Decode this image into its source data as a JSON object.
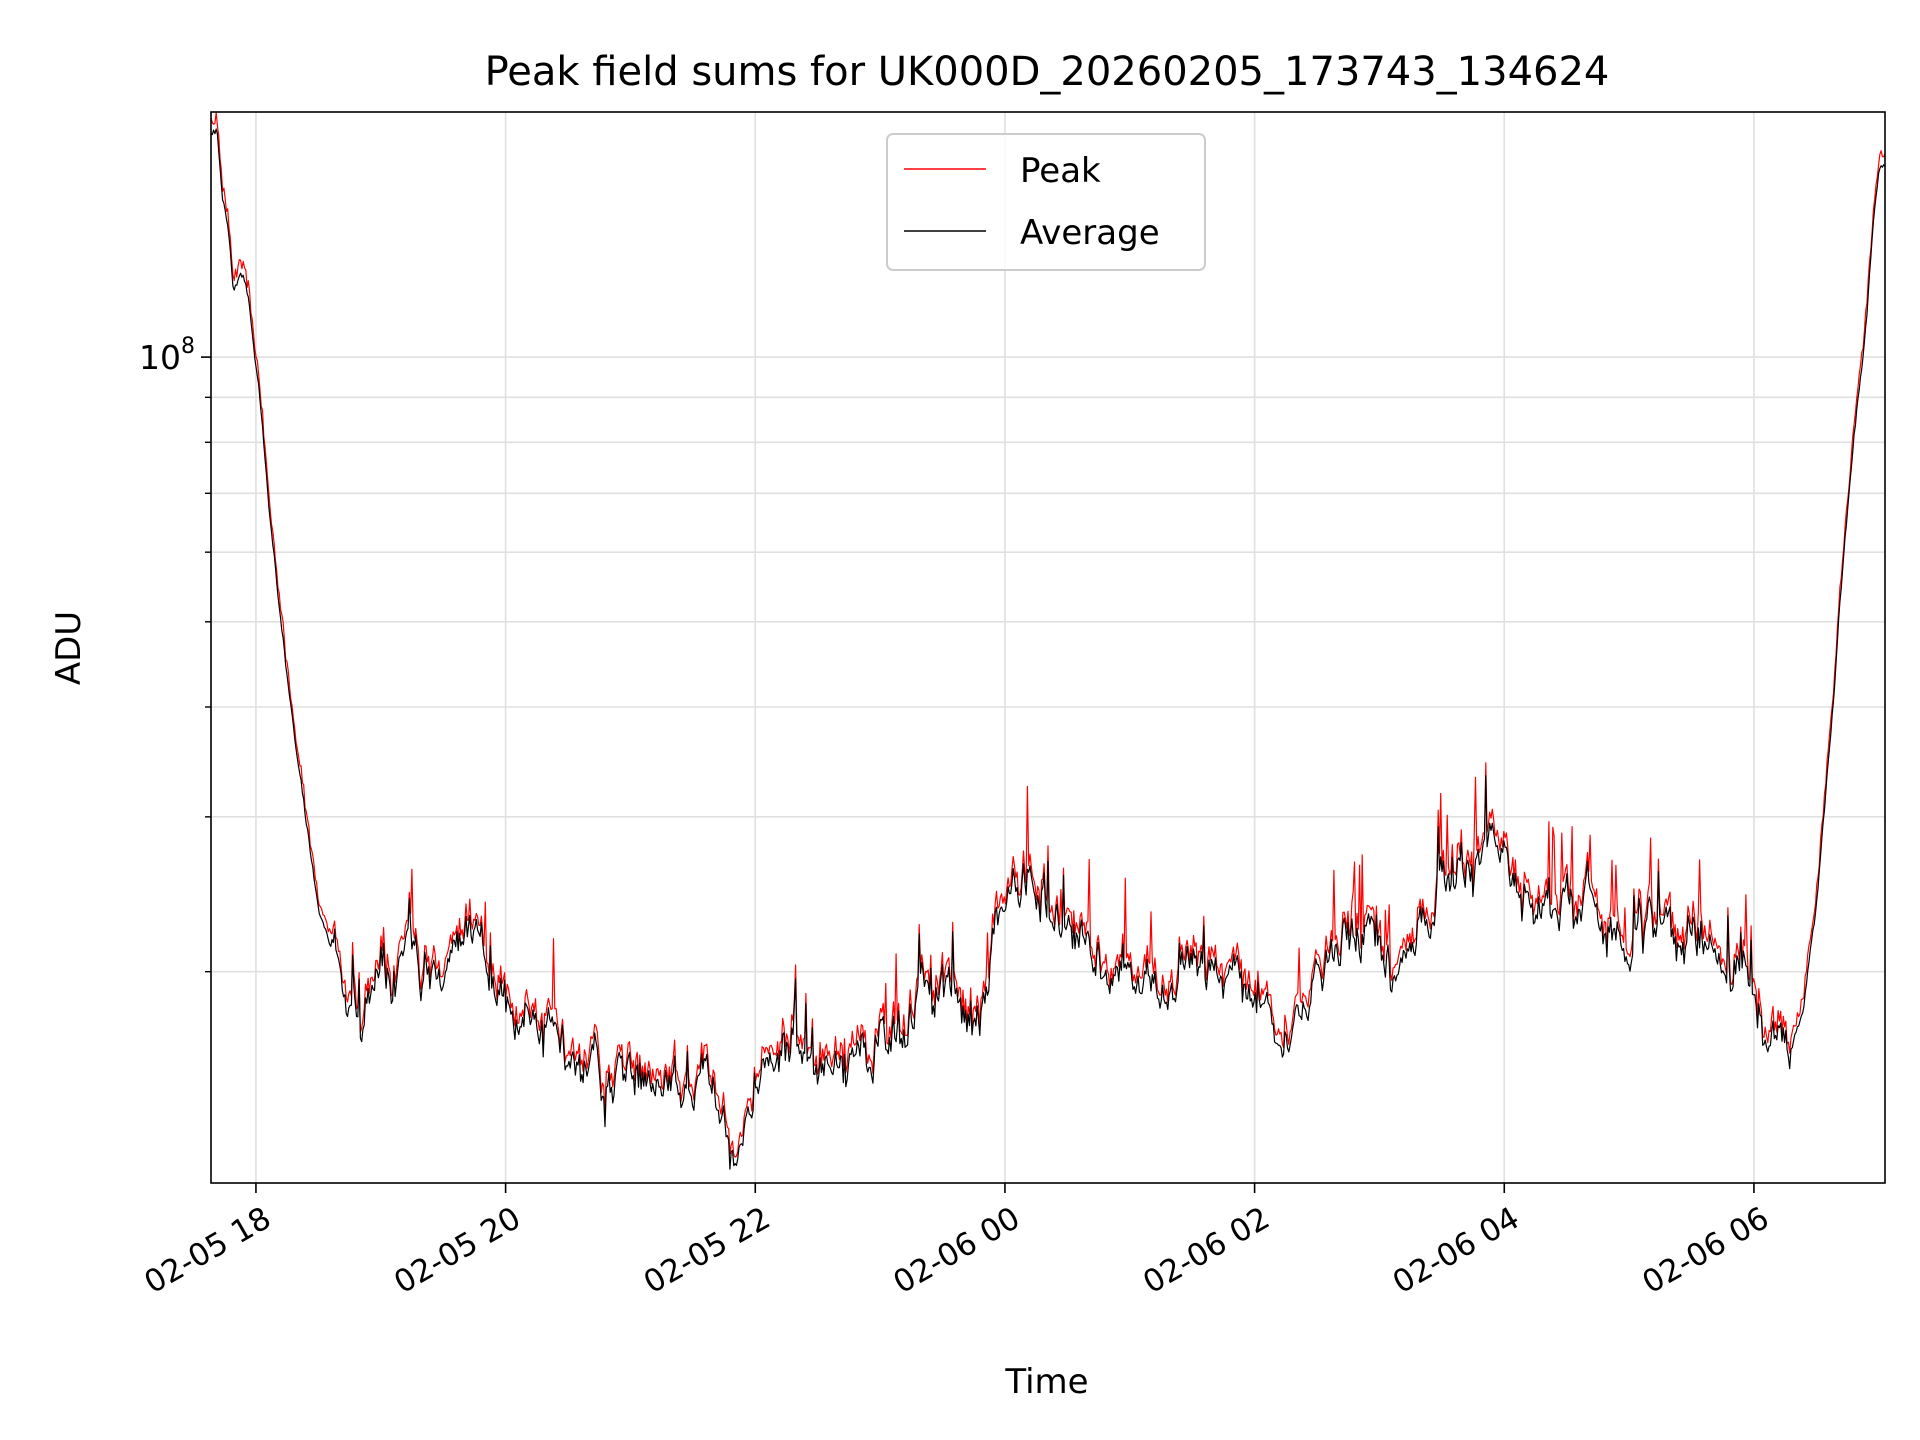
{
  "chart_data": {
    "type": "line",
    "title": "Peak field sums for UK000D_20260205_173743_134624",
    "xlabel": "Time",
    "ylabel": "ADU",
    "yscale": "log",
    "ylim": [
      11500000,
      190000000
    ],
    "xlim": [
      -0.36,
      13.05
    ],
    "x_unit": "hours since 02-05 18:00",
    "x_ticks": [
      {
        "value": 0,
        "label": "02-05 18"
      },
      {
        "value": 2,
        "label": "02-05 20"
      },
      {
        "value": 4,
        "label": "02-05 22"
      },
      {
        "value": 6,
        "label": "02-06 00"
      },
      {
        "value": 8,
        "label": "02-06 02"
      },
      {
        "value": 10,
        "label": "02-06 04"
      },
      {
        "value": 12,
        "label": "02-06 06"
      }
    ],
    "y_major_ticks": [
      {
        "value": 100000000,
        "base": "10",
        "exp": "8"
      }
    ],
    "y_minor_ticks": [
      20000000,
      30000000,
      40000000,
      50000000,
      60000000,
      70000000,
      80000000,
      90000000
    ],
    "grid": true,
    "legend": {
      "position": "top-center"
    },
    "colors": {
      "peak": "#ff0000",
      "average": "#000000"
    },
    "series": [
      {
        "name": "Peak",
        "color": "#ff0000"
      },
      {
        "name": "Average",
        "color": "#000000"
      }
    ],
    "average_keypoints": [
      [
        -0.36,
        180000000
      ],
      [
        -0.31,
        180000000
      ],
      [
        -0.27,
        150000000
      ],
      [
        -0.22,
        140000000
      ],
      [
        -0.18,
        120000000
      ],
      [
        -0.12,
        125000000
      ],
      [
        -0.06,
        118000000
      ],
      [
        0.0,
        98000000
      ],
      [
        0.05,
        85000000
      ],
      [
        0.1,
        70000000
      ],
      [
        0.2,
        50000000
      ],
      [
        0.3,
        38000000
      ],
      [
        0.4,
        30000000
      ],
      [
        0.5,
        24000000
      ],
      [
        0.6,
        21000000
      ],
      [
        0.7,
        19500000
      ],
      [
        0.9,
        18600000
      ],
      [
        1.1,
        19500000
      ],
      [
        1.3,
        20500000
      ],
      [
        1.5,
        21000000
      ],
      [
        1.7,
        20800000
      ],
      [
        1.9,
        19500000
      ],
      [
        2.1,
        17500000
      ],
      [
        2.4,
        16500000
      ],
      [
        2.8,
        15500000
      ],
      [
        3.2,
        15000000
      ],
      [
        3.5,
        14800000
      ],
      [
        3.7,
        14000000
      ],
      [
        3.9,
        12500000
      ],
      [
        4.0,
        14500000
      ],
      [
        4.1,
        16000000
      ],
      [
        4.3,
        15800000
      ],
      [
        4.6,
        16000000
      ],
      [
        4.9,
        16000000
      ],
      [
        5.2,
        18500000
      ],
      [
        5.4,
        18200000
      ],
      [
        5.6,
        18500000
      ],
      [
        5.8,
        18000000
      ],
      [
        5.95,
        23000000
      ],
      [
        6.2,
        25000000
      ],
      [
        6.4,
        23000000
      ],
      [
        6.6,
        22000000
      ],
      [
        6.8,
        19500000
      ],
      [
        7.0,
        19000000
      ],
      [
        7.4,
        19500000
      ],
      [
        7.8,
        20000000
      ],
      [
        8.0,
        18500000
      ],
      [
        8.2,
        17500000
      ],
      [
        8.5,
        19500000
      ],
      [
        8.7,
        22000000
      ],
      [
        8.9,
        21000000
      ],
      [
        9.1,
        19000000
      ],
      [
        9.3,
        22000000
      ],
      [
        9.5,
        25000000
      ],
      [
        9.7,
        26000000
      ],
      [
        9.9,
        27000000
      ],
      [
        10.0,
        25500000
      ],
      [
        10.2,
        24000000
      ],
      [
        10.5,
        23000000
      ],
      [
        10.7,
        23500000
      ],
      [
        10.9,
        22500000
      ],
      [
        11.1,
        22000000
      ],
      [
        11.4,
        22000000
      ],
      [
        11.8,
        21500000
      ],
      [
        12.0,
        19500000
      ],
      [
        12.1,
        17500000
      ],
      [
        12.2,
        16500000
      ],
      [
        12.3,
        17000000
      ],
      [
        12.4,
        18500000
      ],
      [
        12.5,
        24000000
      ],
      [
        12.6,
        35000000
      ],
      [
        12.7,
        55000000
      ],
      [
        12.8,
        80000000
      ],
      [
        12.9,
        110000000
      ],
      [
        12.95,
        140000000
      ],
      [
        13.0,
        165000000
      ],
      [
        13.05,
        170000000
      ]
    ]
  }
}
